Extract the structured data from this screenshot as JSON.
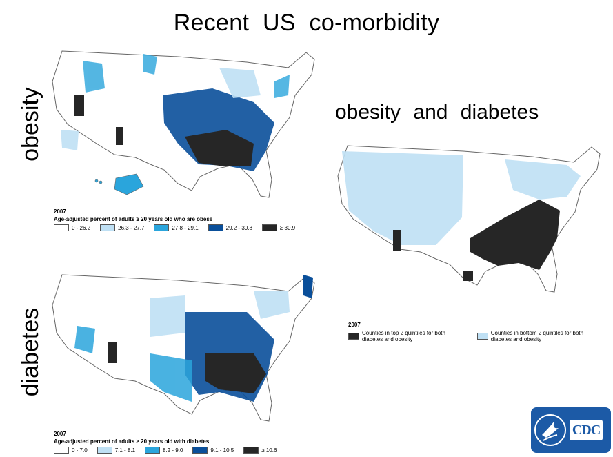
{
  "title": "Recent US co-morbidity",
  "labels": {
    "obesity": "obesity",
    "diabetes": "diabetes",
    "combined": "obesity and diabetes"
  },
  "maps": {
    "obesity": {
      "year": "2007",
      "caption": "Age-adjusted percent of adults ≥ 20 years old who are obese",
      "legend": [
        {
          "label": "0 - 26.2",
          "color": "#ffffff"
        },
        {
          "label": "26.3 - 27.7",
          "color": "#bfe0f4"
        },
        {
          "label": "27.8 - 29.1",
          "color": "#2aa5dc"
        },
        {
          "label": "29.2 - 30.8",
          "color": "#0a4f9a"
        },
        {
          "label": "≥ 30.9",
          "color": "#262626"
        }
      ]
    },
    "diabetes": {
      "year": "2007",
      "caption": "Age-adjusted percent of adults ≥ 20 years old with diabetes",
      "legend": [
        {
          "label": "0 - 7.0",
          "color": "#ffffff"
        },
        {
          "label": "7.1 - 8.1",
          "color": "#bfe0f4"
        },
        {
          "label": "8.2 - 9.0",
          "color": "#2aa5dc"
        },
        {
          "label": "9.1 - 10.5",
          "color": "#0a4f9a"
        },
        {
          "label": "≥ 10.6",
          "color": "#262626"
        }
      ]
    },
    "combined": {
      "year": "2007",
      "legend": [
        {
          "label": "Counties in top 2 quintiles for both diabetes and obesity",
          "color": "#262626"
        },
        {
          "label": "Counties in bottom 2 quintiles for both diabetes and obesity",
          "color": "#bfe0f4"
        }
      ]
    }
  },
  "logo": {
    "text": "CDC",
    "color": "#1c5aa6"
  }
}
